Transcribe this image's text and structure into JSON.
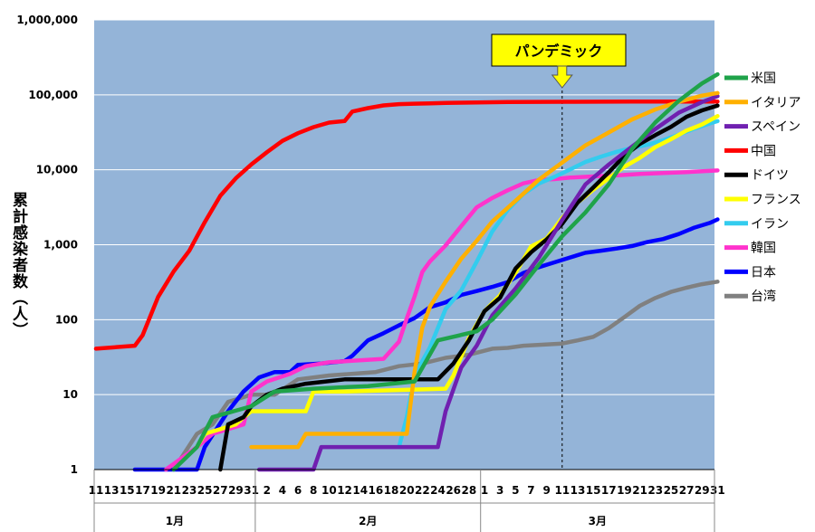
{
  "chart_data": {
    "type": "line",
    "title": "",
    "ylabel": "累計感染者数（人）",
    "y_scale": "log",
    "ylim": [
      1,
      1000000
    ],
    "y_ticks": [
      "1",
      "10",
      "100",
      "1,000",
      "10,000",
      "100,000",
      "1,000,000"
    ],
    "x_tick_labels": [
      "11",
      "13",
      "15",
      "17",
      "19",
      "21",
      "23",
      "25",
      "27",
      "29",
      "31",
      "2",
      "4",
      "6",
      "8",
      "10",
      "12",
      "14",
      "16",
      "18",
      "20",
      "22",
      "24",
      "26",
      "28",
      "1",
      "3",
      "5",
      "7",
      "9",
      "11",
      "13",
      "15",
      "17",
      "19",
      "21",
      "23",
      "25",
      "27",
      "29",
      "31"
    ],
    "months": [
      "1月",
      "2月",
      "3月"
    ],
    "annotation": {
      "label": "パンデミック",
      "date": "3/11"
    },
    "grid": true,
    "legend_position": "right",
    "series": [
      {
        "name": "米国",
        "color": "#1fa34a",
        "points": [
          [
            "1/21",
            1
          ],
          [
            "1/24",
            2
          ],
          [
            "1/26",
            5
          ],
          [
            "1/31",
            7
          ],
          [
            "2/3",
            11
          ],
          [
            "2/8",
            12
          ],
          [
            "2/15",
            13
          ],
          [
            "2/21",
            15
          ],
          [
            "2/24",
            53
          ],
          [
            "2/29",
            70
          ],
          [
            "3/2",
            100
          ],
          [
            "3/5",
            217
          ],
          [
            "3/8",
            541
          ],
          [
            "3/11",
            1300
          ],
          [
            "3/14",
            2700
          ],
          [
            "3/17",
            6400
          ],
          [
            "3/20",
            19000
          ],
          [
            "3/23",
            43000
          ],
          [
            "3/26",
            83000
          ],
          [
            "3/29",
            142000
          ],
          [
            "3/31",
            188000
          ]
        ]
      },
      {
        "name": "イタリア",
        "color": "#ffb000",
        "points": [
          [
            "1/31",
            2
          ],
          [
            "2/6",
            2
          ],
          [
            "2/7",
            3
          ],
          [
            "2/20",
            3
          ],
          [
            "2/21",
            20
          ],
          [
            "2/22",
            79
          ],
          [
            "2/23",
            150
          ],
          [
            "2/25",
            322
          ],
          [
            "2/27",
            650
          ],
          [
            "2/29",
            1128
          ],
          [
            "3/2",
            2036
          ],
          [
            "3/5",
            3858
          ],
          [
            "3/8",
            7375
          ],
          [
            "3/11",
            12462
          ],
          [
            "3/14",
            21157
          ],
          [
            "3/17",
            31506
          ],
          [
            "3/20",
            47021
          ],
          [
            "3/23",
            63927
          ],
          [
            "3/26",
            80589
          ],
          [
            "3/29",
            97689
          ],
          [
            "3/31",
            105792
          ]
        ]
      },
      {
        "name": "スペイン",
        "color": "#7020b0",
        "points": [
          [
            "2/1",
            1
          ],
          [
            "2/8",
            1
          ],
          [
            "2/9",
            2
          ],
          [
            "2/24",
            2
          ],
          [
            "2/25",
            6
          ],
          [
            "2/27",
            23
          ],
          [
            "2/29",
            45
          ],
          [
            "3/2",
            114
          ],
          [
            "3/5",
            261
          ],
          [
            "3/8",
            673
          ],
          [
            "3/11",
            2140
          ],
          [
            "3/14",
            6391
          ],
          [
            "3/17",
            11748
          ],
          [
            "3/20",
            20410
          ],
          [
            "3/23",
            35136
          ],
          [
            "3/26",
            57786
          ],
          [
            "3/29",
            80110
          ],
          [
            "3/31",
            95923
          ]
        ]
      },
      {
        "name": "中国",
        "color": "#ff0000",
        "points": [
          [
            "1/11",
            41
          ],
          [
            "1/16",
            45
          ],
          [
            "1/17",
            62
          ],
          [
            "1/19",
            201
          ],
          [
            "1/21",
            440
          ],
          [
            "1/23",
            830
          ],
          [
            "1/25",
            2000
          ],
          [
            "1/27",
            4500
          ],
          [
            "1/29",
            7700
          ],
          [
            "1/31",
            11800
          ],
          [
            "2/2",
            17200
          ],
          [
            "2/4",
            24300
          ],
          [
            "2/6",
            30800
          ],
          [
            "2/8",
            37100
          ],
          [
            "2/10",
            42600
          ],
          [
            "2/12",
            44700
          ],
          [
            "2/13",
            59800
          ],
          [
            "2/15",
            66500
          ],
          [
            "2/17",
            72400
          ],
          [
            "2/19",
            75100
          ],
          [
            "2/21",
            76300
          ],
          [
            "2/23",
            77000
          ],
          [
            "2/25",
            77900
          ],
          [
            "2/27",
            78600
          ],
          [
            "2/29",
            79300
          ],
          [
            "3/4",
            80400
          ],
          [
            "3/11",
            80900
          ],
          [
            "3/20",
            81200
          ],
          [
            "3/31",
            81500
          ]
        ]
      },
      {
        "name": "ドイツ",
        "color": "#000000",
        "points": [
          [
            "1/27",
            1
          ],
          [
            "1/28",
            4
          ],
          [
            "1/30",
            5
          ],
          [
            "1/31",
            7
          ],
          [
            "2/2",
            10
          ],
          [
            "2/4",
            12
          ],
          [
            "2/7",
            14
          ],
          [
            "2/12",
            16
          ],
          [
            "2/24",
            16
          ],
          [
            "2/26",
            26
          ],
          [
            "2/28",
            53
          ],
          [
            "3/1",
            130
          ],
          [
            "3/3",
            196
          ],
          [
            "3/5",
            482
          ],
          [
            "3/7",
            795
          ],
          [
            "3/9",
            1176
          ],
          [
            "3/11",
            1908
          ],
          [
            "3/13",
            3675
          ],
          [
            "3/15",
            5813
          ],
          [
            "3/17",
            9257
          ],
          [
            "3/19",
            15320
          ],
          [
            "3/21",
            22213
          ],
          [
            "3/23",
            29056
          ],
          [
            "3/25",
            37323
          ],
          [
            "3/27",
            50871
          ],
          [
            "3/29",
            62095
          ],
          [
            "3/31",
            71808
          ]
        ]
      },
      {
        "name": "フランス",
        "color": "#ffff00",
        "points": [
          [
            "1/24",
            2
          ],
          [
            "1/25",
            3
          ],
          [
            "1/29",
            4
          ],
          [
            "1/30",
            5
          ],
          [
            "1/31",
            6
          ],
          [
            "2/7",
            6
          ],
          [
            "2/8",
            11
          ],
          [
            "2/12",
            11
          ],
          [
            "2/25",
            12
          ],
          [
            "2/26",
            18
          ],
          [
            "2/28",
            57
          ],
          [
            "3/1",
            130
          ],
          [
            "3/3",
            212
          ],
          [
            "3/5",
            423
          ],
          [
            "3/7",
            949
          ],
          [
            "3/9",
            1209
          ],
          [
            "3/11",
            2284
          ],
          [
            "3/13",
            3661
          ],
          [
            "3/15",
            5423
          ],
          [
            "3/17",
            7730
          ],
          [
            "3/19",
            10995
          ],
          [
            "3/21",
            14459
          ],
          [
            "3/23",
            20123
          ],
          [
            "3/25",
            25600
          ],
          [
            "3/27",
            33402
          ],
          [
            "3/29",
            40174
          ],
          [
            "3/31",
            52128
          ]
        ]
      },
      {
        "name": "イラン",
        "color": "#33ccee",
        "points": [
          [
            "2/19",
            2
          ],
          [
            "2/20",
            5
          ],
          [
            "2/21",
            18
          ],
          [
            "2/22",
            28
          ],
          [
            "2/23",
            43
          ],
          [
            "2/25",
            139
          ],
          [
            "2/27",
            245
          ],
          [
            "2/29",
            593
          ],
          [
            "3/2",
            1501
          ],
          [
            "3/4",
            2922
          ],
          [
            "3/6",
            4747
          ],
          [
            "3/8",
            6566
          ],
          [
            "3/10",
            8042
          ],
          [
            "3/12",
            10075
          ],
          [
            "3/14",
            12729
          ],
          [
            "3/16",
            14991
          ],
          [
            "3/18",
            17361
          ],
          [
            "3/20",
            19644
          ],
          [
            "3/22",
            21638
          ],
          [
            "3/24",
            24811
          ],
          [
            "3/26",
            29406
          ],
          [
            "3/28",
            35408
          ],
          [
            "3/30",
            41495
          ],
          [
            "3/31",
            44605
          ]
        ]
      },
      {
        "name": "韓国",
        "color": "#ff33cc",
        "points": [
          [
            "1/20",
            1
          ],
          [
            "1/24",
            2
          ],
          [
            "1/26",
            3
          ],
          [
            "1/30",
            4
          ],
          [
            "1/31",
            11
          ],
          [
            "2/2",
            15
          ],
          [
            "2/5",
            19
          ],
          [
            "2/7",
            24
          ],
          [
            "2/10",
            27
          ],
          [
            "2/17",
            30
          ],
          [
            "2/19",
            51
          ],
          [
            "2/20",
            104
          ],
          [
            "2/21",
            204
          ],
          [
            "2/22",
            433
          ],
          [
            "2/23",
            602
          ],
          [
            "2/25",
            977
          ],
          [
            "2/27",
            1766
          ],
          [
            "2/29",
            3150
          ],
          [
            "3/2",
            4212
          ],
          [
            "3/4",
            5328
          ],
          [
            "3/6",
            6593
          ],
          [
            "3/8",
            7313
          ],
          [
            "3/10",
            7513
          ],
          [
            "3/12",
            7869
          ],
          [
            "3/15",
            8162
          ],
          [
            "3/18",
            8413
          ],
          [
            "3/21",
            8799
          ],
          [
            "3/24",
            9037
          ],
          [
            "3/27",
            9332
          ],
          [
            "3/31",
            9786
          ]
        ]
      },
      {
        "name": "日本",
        "color": "#0000ff",
        "points": [
          [
            "1/16",
            1
          ],
          [
            "1/24",
            1
          ],
          [
            "1/25",
            2
          ],
          [
            "1/28",
            6
          ],
          [
            "1/30",
            11
          ],
          [
            "2/1",
            17
          ],
          [
            "2/3",
            20
          ],
          [
            "2/5",
            20
          ],
          [
            "2/6",
            25
          ],
          [
            "2/9",
            26
          ],
          [
            "2/12",
            28
          ],
          [
            "2/13",
            33
          ],
          [
            "2/15",
            53
          ],
          [
            "2/17",
            66
          ],
          [
            "2/19",
            84
          ],
          [
            "2/21",
            105
          ],
          [
            "2/23",
            147
          ],
          [
            "2/25",
            170
          ],
          [
            "2/27",
            214
          ],
          [
            "2/29",
            241
          ],
          [
            "3/2",
            274
          ],
          [
            "3/4",
            317
          ],
          [
            "3/6",
            420
          ],
          [
            "3/8",
            502
          ],
          [
            "3/10",
            581
          ],
          [
            "3/12",
            675
          ],
          [
            "3/14",
            780
          ],
          [
            "3/16",
            833
          ],
          [
            "3/18",
            889
          ],
          [
            "3/20",
            963
          ],
          [
            "3/22",
            1089
          ],
          [
            "3/24",
            1193
          ],
          [
            "3/26",
            1387
          ],
          [
            "3/28",
            1693
          ],
          [
            "3/30",
            1953
          ],
          [
            "3/31",
            2178
          ]
        ]
      },
      {
        "name": "台湾",
        "color": "#808080",
        "points": [
          [
            "1/21",
            1
          ],
          [
            "1/24",
            3
          ],
          [
            "1/26",
            4
          ],
          [
            "1/28",
            8
          ],
          [
            "1/31",
            10
          ],
          [
            "2/3",
            10
          ],
          [
            "2/6",
            16
          ],
          [
            "2/10",
            18
          ],
          [
            "2/16",
            20
          ],
          [
            "2/19",
            24
          ],
          [
            "2/22",
            26
          ],
          [
            "2/25",
            31
          ],
          [
            "2/28",
            34
          ],
          [
            "3/2",
            41
          ],
          [
            "3/4",
            42
          ],
          [
            "3/6",
            45
          ],
          [
            "3/11",
            48
          ],
          [
            "3/13",
            53
          ],
          [
            "3/15",
            59
          ],
          [
            "3/17",
            77
          ],
          [
            "3/19",
            108
          ],
          [
            "3/21",
            153
          ],
          [
            "3/23",
            195
          ],
          [
            "3/25",
            235
          ],
          [
            "3/27",
            267
          ],
          [
            "3/29",
            298
          ],
          [
            "3/31",
            322
          ]
        ]
      }
    ]
  }
}
